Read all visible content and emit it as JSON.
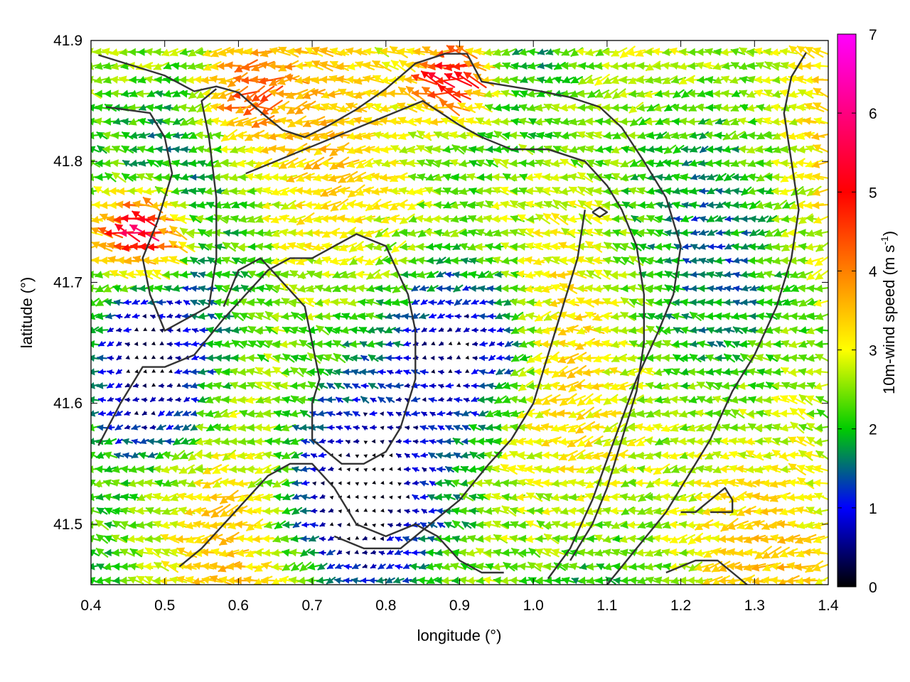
{
  "chart_data": {
    "type": "vector-field",
    "xlabel": "longitude (°)",
    "ylabel": "latitude (°)",
    "xlim": [
      0.4,
      1.4
    ],
    "ylim": [
      41.45,
      41.9
    ],
    "xticks": [
      "0.4",
      "0.5",
      "0.6",
      "0.7",
      "0.8",
      "0.9",
      "1.0",
      "1.1",
      "1.2",
      "1.3",
      "1.4"
    ],
    "yticks": [
      "41.5",
      "41.6",
      "41.7",
      "41.8",
      "41.9"
    ],
    "colorbar": {
      "label_main": "10m-wind speed (m s",
      "label_sup": "-1",
      "label_end": ")",
      "range": [
        0,
        7
      ],
      "ticks": [
        "0",
        "1",
        "2",
        "3",
        "4",
        "5",
        "6",
        "7"
      ],
      "colors": [
        "#000000",
        "#0000ff",
        "#00cc00",
        "#ffff00",
        "#ff0000",
        "#ff00ff"
      ]
    },
    "wind_field": {
      "grid_spacing_deg": {
        "lon": 0.0115,
        "lat": 0.0115
      },
      "prevailing_direction": "from east",
      "calm_zones": [
        {
          "lon": 0.92,
          "lat": 41.65
        },
        {
          "lon": 0.75,
          "lat": 41.52
        },
        {
          "lon": 0.47,
          "lat": 41.62
        }
      ],
      "max_speed_zones": [
        {
          "lon": 0.47,
          "lat": 41.74,
          "speed": 5.6
        },
        {
          "lon": 0.89,
          "lat": 41.87,
          "speed": 5.2
        },
        {
          "lon": 0.62,
          "lat": 41.86,
          "speed": 4.6
        }
      ]
    },
    "coastlines": [
      [
        [
          0.41,
          41.888
        ],
        [
          0.5,
          41.871
        ],
        [
          0.54,
          41.858
        ],
        [
          0.57,
          41.862
        ],
        [
          0.6,
          41.857
        ],
        [
          0.63,
          41.841
        ],
        [
          0.66,
          41.826
        ],
        [
          0.69,
          41.82
        ],
        [
          0.72,
          41.829
        ],
        [
          0.76,
          41.843
        ],
        [
          0.8,
          41.86
        ],
        [
          0.84,
          41.881
        ],
        [
          0.88,
          41.889
        ],
        [
          0.91,
          41.889
        ],
        [
          0.93,
          41.866
        ],
        [
          0.97,
          41.862
        ],
        [
          1.01,
          41.858
        ],
        [
          1.05,
          41.853
        ],
        [
          1.09,
          41.845
        ],
        [
          1.12,
          41.828
        ],
        [
          1.15,
          41.8
        ],
        [
          1.18,
          41.77
        ],
        [
          1.2,
          41.73
        ],
        [
          1.19,
          41.69
        ],
        [
          1.17,
          41.66
        ],
        [
          1.14,
          41.62
        ],
        [
          1.11,
          41.57
        ],
        [
          1.08,
          41.52
        ],
        [
          1.05,
          41.48
        ],
        [
          1.02,
          41.455
        ]
      ],
      [
        [
          0.42,
          41.845
        ],
        [
          0.48,
          41.84
        ],
        [
          0.5,
          41.82
        ],
        [
          0.51,
          41.79
        ],
        [
          0.49,
          41.75
        ],
        [
          0.47,
          41.72
        ],
        [
          0.48,
          41.69
        ],
        [
          0.5,
          41.66
        ],
        [
          0.53,
          41.67
        ],
        [
          0.56,
          41.68
        ],
        [
          0.57,
          41.72
        ],
        [
          0.57,
          41.77
        ],
        [
          0.56,
          41.82
        ],
        [
          0.55,
          41.85
        ],
        [
          0.57,
          41.86
        ]
      ],
      [
        [
          0.61,
          41.79
        ],
        [
          0.65,
          41.8
        ],
        [
          0.69,
          41.81
        ],
        [
          0.73,
          41.82
        ],
        [
          0.77,
          41.83
        ],
        [
          0.81,
          41.84
        ],
        [
          0.85,
          41.85
        ],
        [
          0.9,
          41.83
        ],
        [
          0.93,
          41.82
        ],
        [
          0.97,
          41.81
        ],
        [
          1.02,
          41.81
        ],
        [
          1.07,
          41.8
        ],
        [
          1.1,
          41.78
        ],
        [
          1.12,
          41.76
        ],
        [
          1.14,
          41.73
        ],
        [
          1.15,
          41.69
        ],
        [
          1.15,
          41.65
        ],
        [
          1.14,
          41.61
        ],
        [
          1.12,
          41.57
        ],
        [
          1.1,
          41.53
        ],
        [
          1.08,
          41.5
        ],
        [
          1.05,
          41.47
        ]
      ],
      [
        [
          0.41,
          41.565
        ],
        [
          0.44,
          41.6
        ],
        [
          0.47,
          41.63
        ],
        [
          0.5,
          41.63
        ],
        [
          0.54,
          41.64
        ],
        [
          0.58,
          41.67
        ],
        [
          0.61,
          41.69
        ],
        [
          0.64,
          41.71
        ],
        [
          0.67,
          41.72
        ],
        [
          0.7,
          41.72
        ],
        [
          0.73,
          41.73
        ],
        [
          0.76,
          41.74
        ],
        [
          0.8,
          41.73
        ],
        [
          0.83,
          41.69
        ],
        [
          0.84,
          41.66
        ],
        [
          0.84,
          41.62
        ],
        [
          0.82,
          41.58
        ],
        [
          0.8,
          41.56
        ],
        [
          0.77,
          41.55
        ],
        [
          0.74,
          41.55
        ],
        [
          0.72,
          41.56
        ],
        [
          0.7,
          41.57
        ],
        [
          0.7,
          41.6
        ],
        [
          0.71,
          41.62
        ],
        [
          0.7,
          41.65
        ],
        [
          0.69,
          41.68
        ],
        [
          0.66,
          41.7
        ],
        [
          0.63,
          41.72
        ],
        [
          0.6,
          41.71
        ],
        [
          0.58,
          41.68
        ]
      ],
      [
        [
          0.52,
          41.465
        ],
        [
          0.55,
          41.48
        ],
        [
          0.58,
          41.5
        ],
        [
          0.61,
          41.52
        ],
        [
          0.64,
          41.54
        ],
        [
          0.67,
          41.55
        ],
        [
          0.7,
          41.55
        ],
        [
          0.73,
          41.53
        ],
        [
          0.76,
          41.5
        ],
        [
          0.8,
          41.49
        ],
        [
          0.84,
          41.5
        ],
        [
          0.87,
          41.49
        ],
        [
          0.9,
          41.47
        ],
        [
          0.93,
          41.46
        ],
        [
          0.96,
          41.46
        ]
      ],
      [
        [
          0.73,
          41.49
        ],
        [
          0.77,
          41.48
        ],
        [
          0.82,
          41.48
        ],
        [
          0.86,
          41.5
        ],
        [
          0.9,
          41.52
        ],
        [
          0.94,
          41.55
        ],
        [
          0.97,
          41.57
        ],
        [
          1.0,
          41.6
        ],
        [
          1.02,
          41.64
        ],
        [
          1.04,
          41.68
        ],
        [
          1.06,
          41.72
        ],
        [
          1.07,
          41.76
        ]
      ],
      [
        [
          1.1,
          41.45
        ],
        [
          1.14,
          41.48
        ],
        [
          1.18,
          41.51
        ],
        [
          1.21,
          41.54
        ],
        [
          1.24,
          41.57
        ],
        [
          1.27,
          41.61
        ],
        [
          1.3,
          41.64
        ],
        [
          1.33,
          41.68
        ],
        [
          1.35,
          41.72
        ],
        [
          1.36,
          41.76
        ],
        [
          1.35,
          41.8
        ],
        [
          1.34,
          41.84
        ],
        [
          1.35,
          41.87
        ],
        [
          1.37,
          41.89
        ]
      ],
      [
        [
          1.18,
          41.46
        ],
        [
          1.22,
          41.47
        ],
        [
          1.25,
          41.47
        ],
        [
          1.27,
          41.46
        ],
        [
          1.29,
          41.45
        ]
      ],
      [
        [
          1.2,
          41.51
        ],
        [
          1.22,
          41.51
        ],
        [
          1.24,
          41.52
        ],
        [
          1.26,
          41.53
        ],
        [
          1.27,
          41.52
        ],
        [
          1.27,
          41.51
        ],
        [
          1.24,
          41.51
        ]
      ],
      [
        [
          1.08,
          41.758
        ],
        [
          1.09,
          41.762
        ],
        [
          1.1,
          41.758
        ],
        [
          1.09,
          41.754
        ],
        [
          1.08,
          41.758
        ]
      ]
    ]
  }
}
